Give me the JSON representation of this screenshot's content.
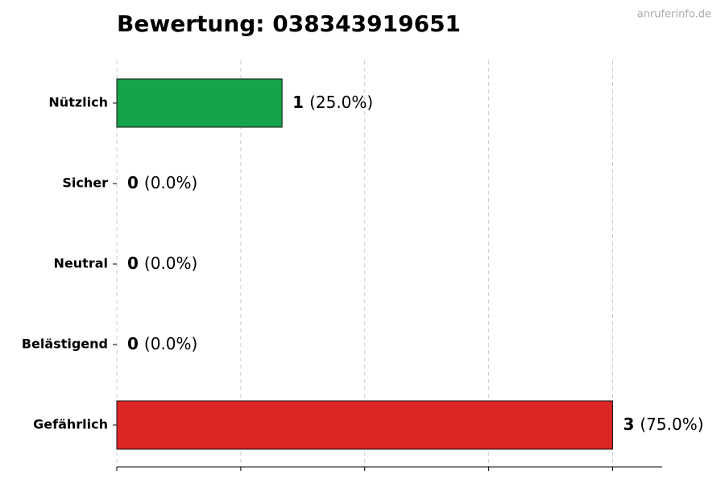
{
  "chart_data": {
    "type": "hbar",
    "title": "Bewertung: 038343919651",
    "watermark": "anruferinfo.de",
    "categories": [
      "Nützlich",
      "Sicher",
      "Neutral",
      "Belästigend",
      "Gefährlich"
    ],
    "values": [
      1,
      0,
      0,
      0,
      3
    ],
    "percentages": [
      25,
      0,
      0,
      0,
      75
    ],
    "percentage_labels": [
      "(25.0%)",
      "(0.0%)",
      "(0.0%)",
      "(0.0%)",
      "(75.0%)"
    ],
    "colors": [
      "#16a34a",
      "#9ca3af",
      "#6b7280",
      "#f59e0b",
      "#dc2626"
    ],
    "xlim": [
      0,
      3.3
    ],
    "xticks": [
      0,
      0.75,
      1.5,
      2.25,
      3
    ],
    "grid": true
  }
}
